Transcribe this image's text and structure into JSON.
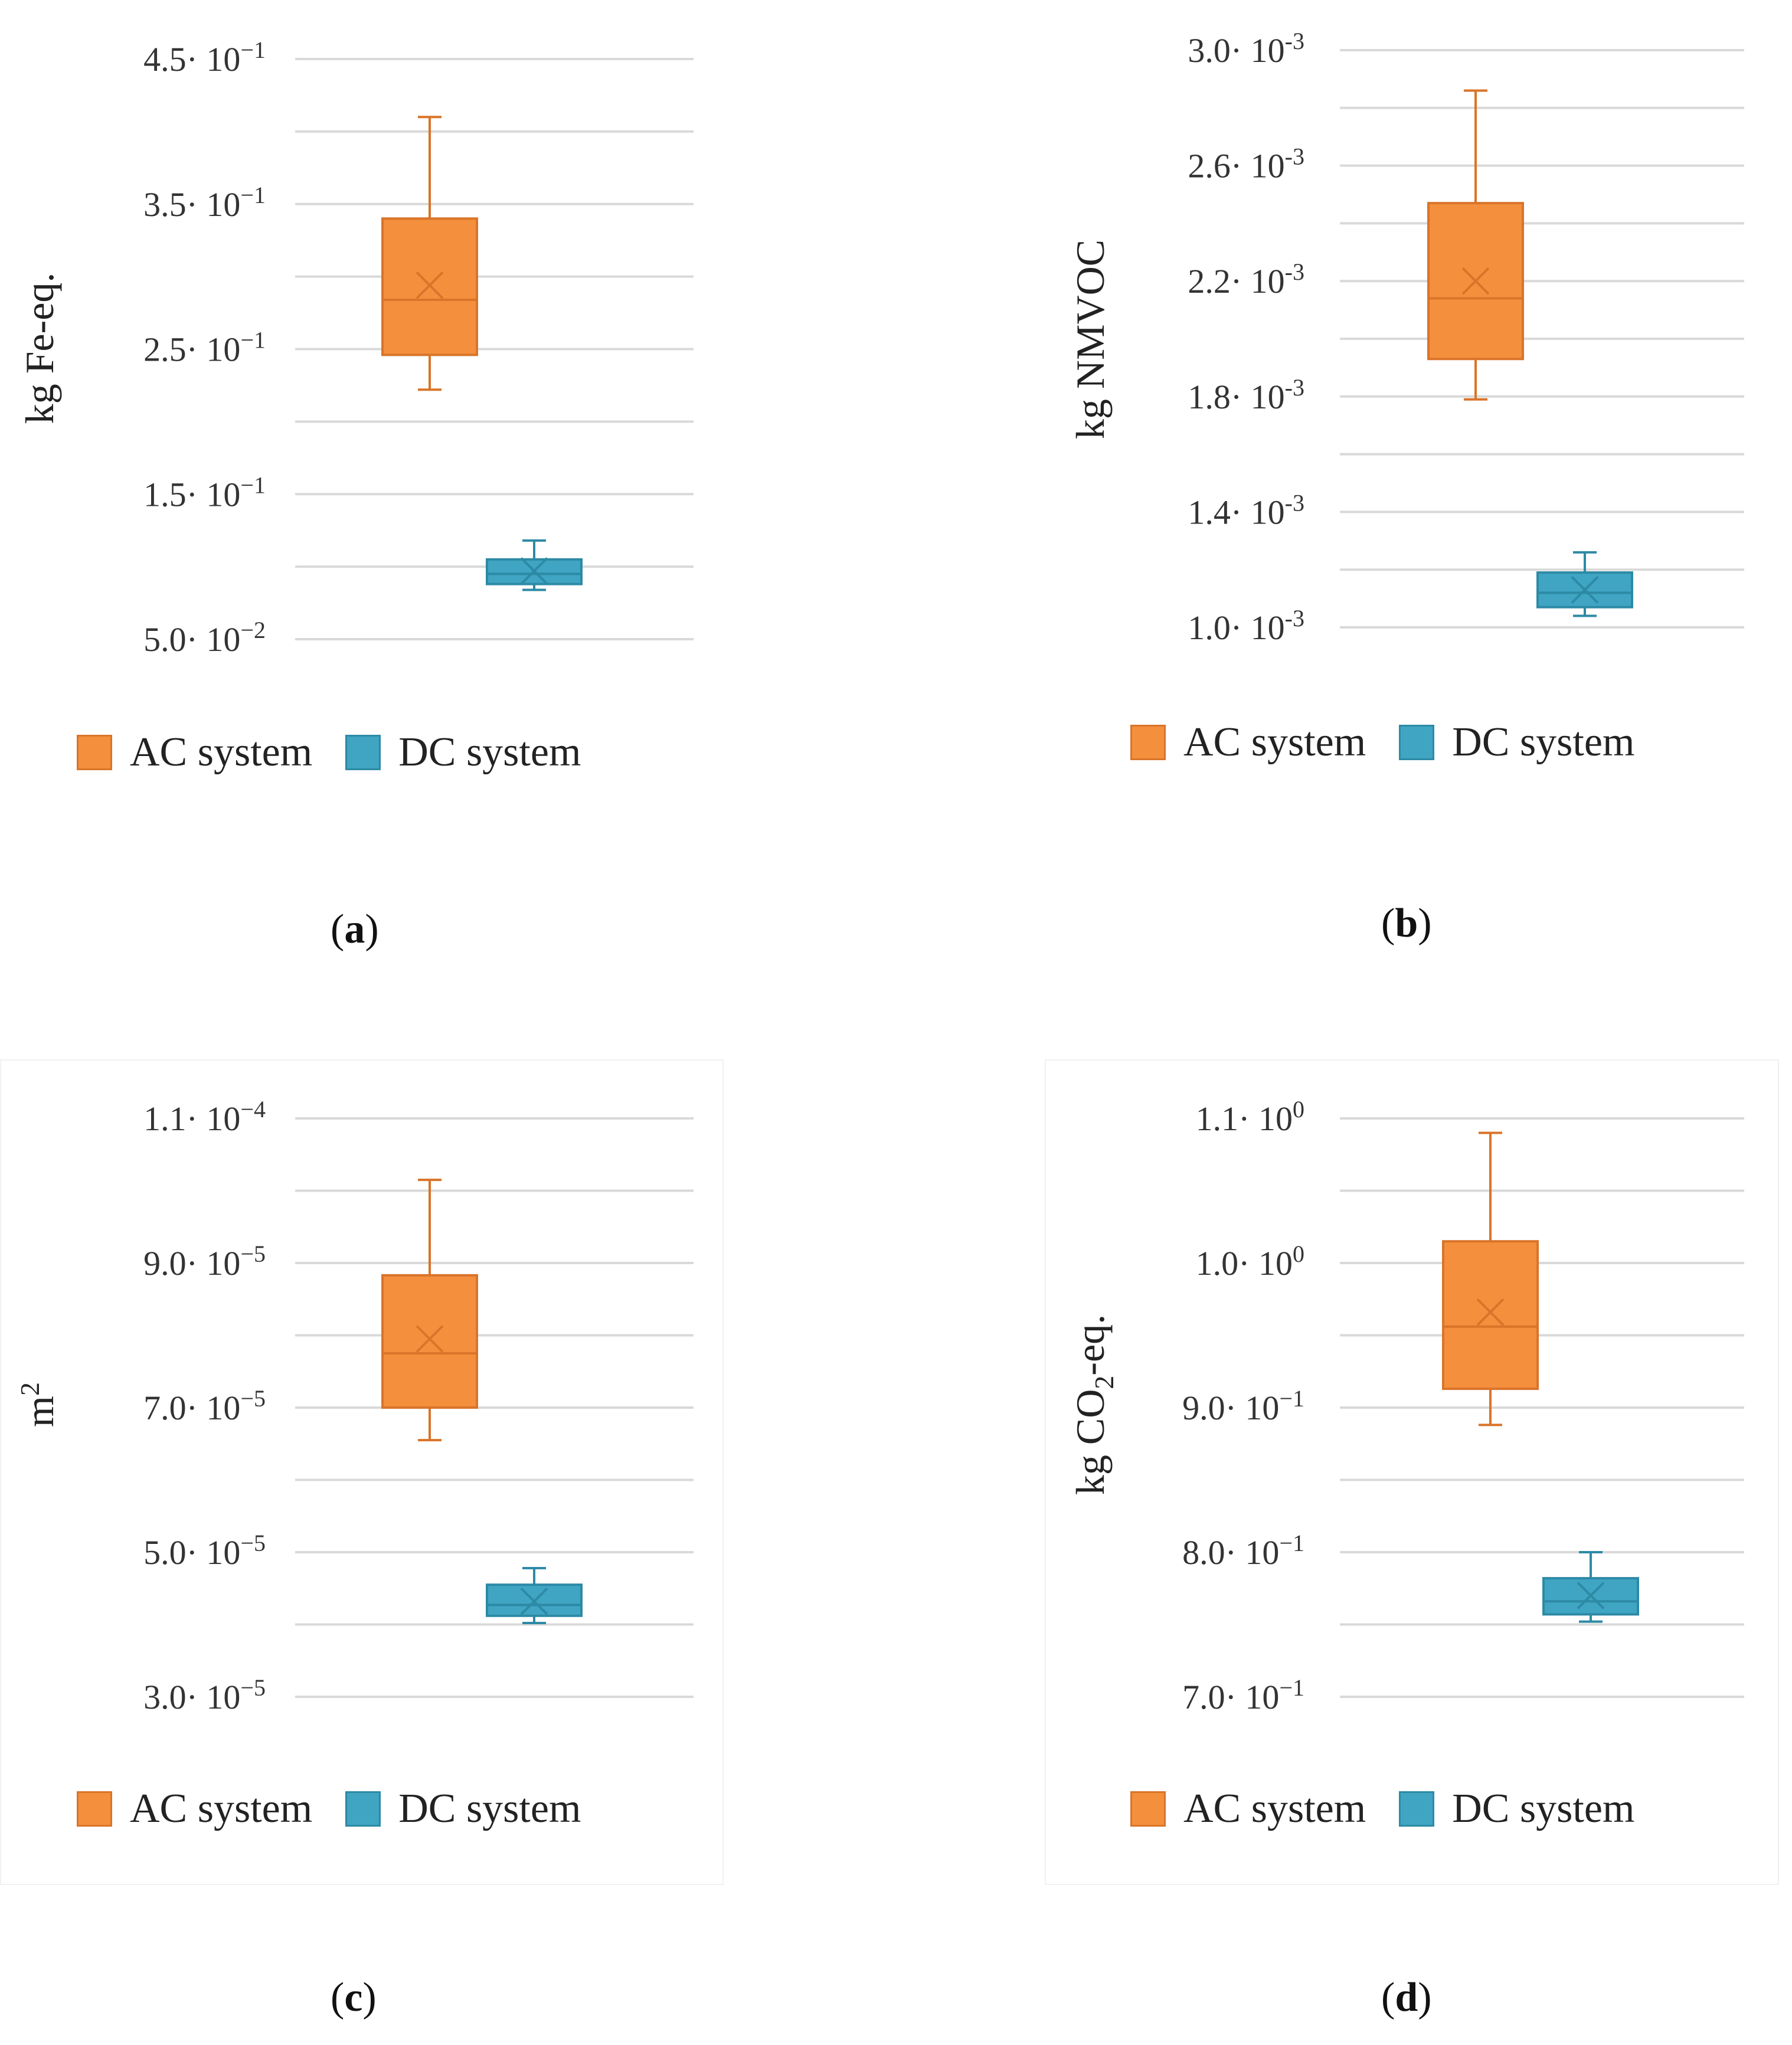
{
  "colors": {
    "ac": "#F4903D",
    "ac_stroke": "#D9742A",
    "dc": "#3FA5C2",
    "dc_stroke": "#2D8AA5",
    "grid": "#d9d9d9"
  },
  "legend": {
    "ac": "AC system",
    "dc": "DC system"
  },
  "captions": {
    "a": "a",
    "b": "b",
    "c": "c",
    "d": "d"
  },
  "ylabels": {
    "a": "kg Fe-eq.",
    "b": "kg NMVOC",
    "c": {
      "base": "m",
      "sup": "2"
    },
    "d": {
      "pre": "kg CO",
      "sub": "2",
      "post": "-eq."
    }
  },
  "chart_data": [
    {
      "panel": "a",
      "type": "box",
      "ylabel": "kg Fe-eq.",
      "ylim": [
        0.05,
        0.45
      ],
      "ticks": [
        {
          "value": 0.45,
          "mant": "4.5",
          "exp": "−1"
        },
        {
          "value": 0.35,
          "mant": "3.5",
          "exp": "−1"
        },
        {
          "value": 0.25,
          "mant": "2.5",
          "exp": "−1"
        },
        {
          "value": 0.15,
          "mant": "1.5",
          "exp": "−1"
        },
        {
          "value": 0.05,
          "mant": "5.0",
          "exp": "−2"
        }
      ],
      "series": [
        {
          "name": "AC system",
          "min": 0.222,
          "q1": 0.246,
          "median": 0.284,
          "q3": 0.34,
          "max": 0.41,
          "mean": 0.294
        },
        {
          "name": "DC system",
          "min": 0.084,
          "q1": 0.088,
          "median": 0.095,
          "q3": 0.105,
          "max": 0.118,
          "mean": 0.097
        }
      ]
    },
    {
      "panel": "b",
      "type": "box",
      "ylabel": "kg NMVOC",
      "ylim": [
        0.001,
        0.003
      ],
      "ticks": [
        {
          "value": 0.003,
          "mant": "3.0",
          "exp": "-3"
        },
        {
          "value": 0.0026,
          "mant": "2.6",
          "exp": "-3"
        },
        {
          "value": 0.0022,
          "mant": "2.2",
          "exp": "-3"
        },
        {
          "value": 0.0018,
          "mant": "1.8",
          "exp": "-3"
        },
        {
          "value": 0.0014,
          "mant": "1.4",
          "exp": "-3"
        },
        {
          "value": 0.001,
          "mant": "1.0",
          "exp": "-3"
        }
      ],
      "series": [
        {
          "name": "AC system",
          "min": 0.00179,
          "q1": 0.00193,
          "median": 0.00214,
          "q3": 0.00247,
          "max": 0.00286,
          "mean": 0.0022
        },
        {
          "name": "DC system",
          "min": 0.00104,
          "q1": 0.00107,
          "median": 0.00112,
          "q3": 0.00119,
          "max": 0.00126,
          "mean": 0.00113
        }
      ]
    },
    {
      "panel": "c",
      "type": "box",
      "ylabel": "m2",
      "ylim": [
        3e-05,
        0.00011
      ],
      "ticks": [
        {
          "value": 0.00011,
          "mant": "1.1",
          "exp": "−4"
        },
        {
          "value": 9e-05,
          "mant": "9.0",
          "exp": "−5"
        },
        {
          "value": 7e-05,
          "mant": "7.0",
          "exp": "−5"
        },
        {
          "value": 5e-05,
          "mant": "5.0",
          "exp": "−5"
        },
        {
          "value": 3e-05,
          "mant": "3.0",
          "exp": "−5"
        }
      ],
      "series": [
        {
          "name": "AC system",
          "min": 6.55e-05,
          "q1": 7e-05,
          "median": 7.75e-05,
          "q3": 8.83e-05,
          "max": 0.0001015,
          "mean": 7.95e-05
        },
        {
          "name": "DC system",
          "min": 4.02e-05,
          "q1": 4.12e-05,
          "median": 4.27e-05,
          "q3": 4.55e-05,
          "max": 4.78e-05,
          "mean": 4.32e-05
        }
      ]
    },
    {
      "panel": "d",
      "type": "box",
      "ylabel": "kg CO2-eq.",
      "ylim": [
        0.7,
        1.1
      ],
      "ticks": [
        {
          "value": 1.1,
          "mant": "1.1",
          "exp": "0"
        },
        {
          "value": 1.0,
          "mant": "1.0",
          "exp": "0"
        },
        {
          "value": 0.9,
          "mant": "9.0",
          "exp": "−1"
        },
        {
          "value": 0.8,
          "mant": "8.0",
          "exp": "−1"
        },
        {
          "value": 0.7,
          "mant": "7.0",
          "exp": "−1"
        }
      ],
      "series": [
        {
          "name": "AC system",
          "min": 0.888,
          "q1": 0.913,
          "median": 0.956,
          "q3": 1.015,
          "max": 1.09,
          "mean": 0.966
        },
        {
          "name": "DC system",
          "min": 0.752,
          "q1": 0.757,
          "median": 0.766,
          "q3": 0.782,
          "max": 0.8,
          "mean": 0.77
        }
      ]
    }
  ]
}
